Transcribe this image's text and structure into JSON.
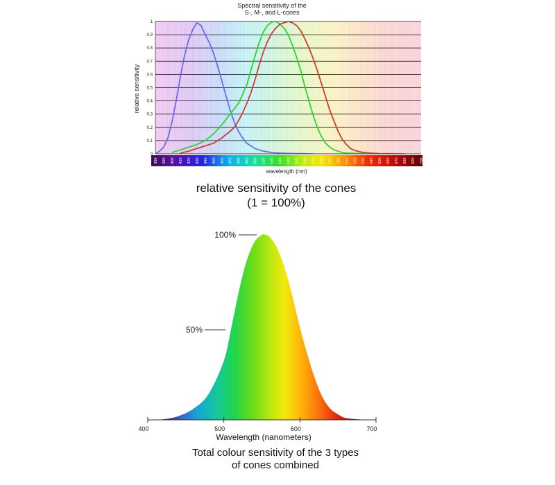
{
  "chart_data": [
    {
      "type": "line",
      "title": "Spectral sensitivity of the S-, M-, and L-cones",
      "title_lines": [
        "Spectral sensitivity of the",
        "S-, M-, and L-cones"
      ],
      "xlabel": "wavelength (nm)",
      "ylabel": "relative sensitivity",
      "xlim": [
        380,
        700
      ],
      "ylim": [
        0,
        1
      ],
      "y_ticks": [
        "0",
        "0.1",
        "0.2",
        "0.3",
        "0.4",
        "0.5",
        "0.6",
        "0.7",
        "0.8",
        "0.9",
        "1"
      ],
      "x_ticks": [
        "380",
        "390",
        "400",
        "410",
        "420",
        "430",
        "440",
        "450",
        "460",
        "470",
        "480",
        "490",
        "500",
        "510",
        "520",
        "530",
        "540",
        "550",
        "560",
        "570",
        "580",
        "590",
        "600",
        "610",
        "620",
        "630",
        "640",
        "650",
        "660",
        "670",
        "680",
        "690",
        "700"
      ],
      "grid": true,
      "series": [
        {
          "color": "#6a6aee",
          "x": [
            380,
            385,
            390,
            395,
            400,
            405,
            410,
            415,
            420,
            425,
            430,
            435,
            440,
            445,
            450,
            455,
            460,
            465,
            470,
            475,
            480,
            485,
            490,
            495,
            500,
            505,
            510,
            515,
            520,
            530,
            540,
            550,
            560,
            570
          ],
          "y": [
            0.0,
            0.02,
            0.05,
            0.12,
            0.24,
            0.4,
            0.58,
            0.74,
            0.86,
            0.94,
            0.99,
            0.97,
            0.9,
            0.84,
            0.76,
            0.66,
            0.55,
            0.44,
            0.33,
            0.24,
            0.17,
            0.12,
            0.08,
            0.06,
            0.04,
            0.03,
            0.02,
            0.015,
            0.01,
            0.005,
            0.003,
            0.002,
            0.001,
            0.0
          ]
        },
        {
          "color": "#2bd52b",
          "x": [
            400,
            410,
            420,
            430,
            440,
            450,
            460,
            470,
            475,
            480,
            485,
            490,
            495,
            500,
            505,
            510,
            515,
            520,
            525,
            530,
            535,
            540,
            545,
            550,
            555,
            560,
            565,
            570,
            575,
            580,
            585,
            590,
            595,
            600,
            605,
            610,
            620,
            630,
            640,
            650,
            660
          ],
          "y": [
            0.01,
            0.03,
            0.05,
            0.07,
            0.1,
            0.15,
            0.22,
            0.3,
            0.34,
            0.38,
            0.45,
            0.52,
            0.63,
            0.74,
            0.84,
            0.92,
            0.97,
            0.995,
            1.0,
            0.98,
            0.95,
            0.9,
            0.82,
            0.73,
            0.63,
            0.51,
            0.4,
            0.29,
            0.2,
            0.13,
            0.08,
            0.05,
            0.03,
            0.02,
            0.01,
            0.006,
            0.003,
            0.002,
            0.001,
            0.0,
            0.0
          ]
        },
        {
          "color": "#d23a2a",
          "x": [
            410,
            420,
            430,
            440,
            450,
            460,
            470,
            475,
            480,
            485,
            490,
            495,
            500,
            505,
            510,
            515,
            520,
            525,
            530,
            535,
            540,
            545,
            550,
            555,
            560,
            565,
            570,
            575,
            580,
            585,
            590,
            595,
            600,
            605,
            610,
            615,
            620,
            630,
            640,
            650,
            660,
            670,
            680
          ],
          "y": [
            0.005,
            0.02,
            0.04,
            0.06,
            0.08,
            0.12,
            0.17,
            0.2,
            0.25,
            0.31,
            0.38,
            0.46,
            0.56,
            0.67,
            0.77,
            0.85,
            0.91,
            0.95,
            0.98,
            0.99,
            1.0,
            0.99,
            0.97,
            0.93,
            0.87,
            0.8,
            0.72,
            0.63,
            0.53,
            0.43,
            0.33,
            0.25,
            0.17,
            0.11,
            0.07,
            0.04,
            0.025,
            0.01,
            0.005,
            0.002,
            0.001,
            0.0,
            0.0
          ]
        }
      ]
    },
    {
      "type": "area",
      "xlabel": "Wavelength (nanometers)",
      "xlim": [
        400,
        700
      ],
      "ylim": [
        0,
        1
      ],
      "x_ticks": [
        "400",
        "500",
        "600",
        "700"
      ],
      "annotations": [
        "100%",
        "50%"
      ],
      "peak": 555,
      "x": [
        400,
        420,
        440,
        460,
        480,
        500,
        510,
        520,
        530,
        540,
        550,
        555,
        560,
        570,
        580,
        590,
        600,
        610,
        620,
        630,
        640,
        650,
        660,
        680,
        700
      ],
      "y": [
        0.0,
        0.003,
        0.02,
        0.06,
        0.14,
        0.32,
        0.5,
        0.7,
        0.86,
        0.96,
        1.0,
        1.0,
        0.99,
        0.93,
        0.82,
        0.67,
        0.5,
        0.35,
        0.22,
        0.12,
        0.06,
        0.03,
        0.01,
        0.002,
        0.0
      ]
    }
  ],
  "captions": {
    "middle_line1": "relative sensitivity of the cones",
    "middle_line2": "(1 = 100%)",
    "bottom_line1": "Total colour sensitivity of the 3 types",
    "bottom_line2": "of cones combined"
  }
}
